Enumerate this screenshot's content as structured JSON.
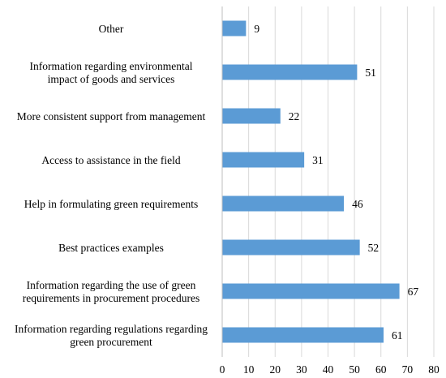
{
  "chart_data": {
    "type": "bar",
    "orientation": "horizontal",
    "categories": [
      [
        "Other"
      ],
      [
        "Information regarding environmental",
        "impact of goods and services"
      ],
      [
        "More consistent support from management"
      ],
      [
        "Access to assistance in the field"
      ],
      [
        "Help in formulating green requirements"
      ],
      [
        "Best practices examples"
      ],
      [
        "Information regarding the use of green",
        "requirements in procurement procedures"
      ],
      [
        "Information regarding regulations regarding",
        "green procurement"
      ]
    ],
    "values": [
      9,
      51,
      22,
      31,
      46,
      52,
      67,
      61
    ],
    "xlim": [
      0,
      80
    ],
    "xticks": [
      0,
      10,
      20,
      30,
      40,
      50,
      60,
      70,
      80
    ],
    "grid": true,
    "data_labels": true,
    "bar_color": "#5b9bd5"
  }
}
